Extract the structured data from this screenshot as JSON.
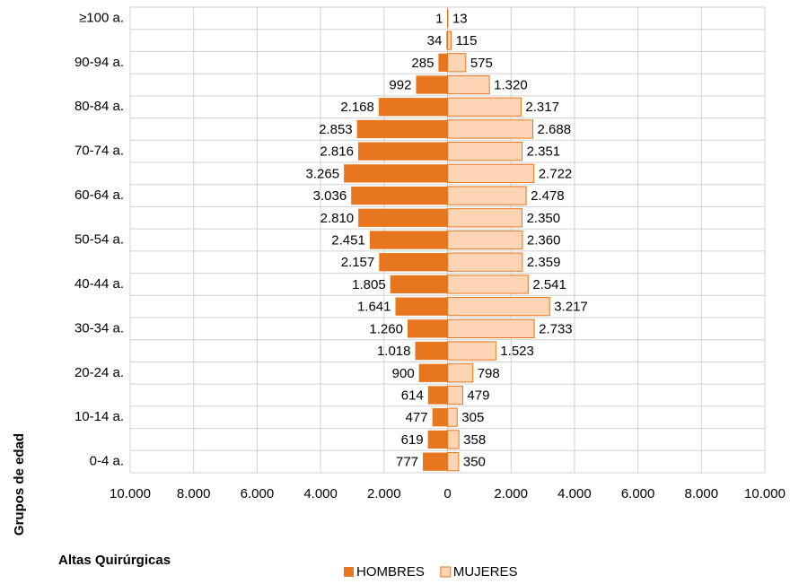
{
  "chart_data": {
    "type": "pyramid",
    "title": "Altas Quirúrgicas",
    "y_label": "Grupos de edad",
    "categories": [
      "≥100 a.",
      null,
      "90-94 a.",
      null,
      "80-84 a.",
      null,
      "70-74 a.",
      null,
      "60-64 a.",
      null,
      "50-54 a.",
      null,
      "40-44 a.",
      null,
      "30-34 a.",
      null,
      "20-24 a.",
      null,
      "10-14 a.",
      null,
      "0-4 a."
    ],
    "series": [
      {
        "name": "HOMBRES",
        "color": "#e8761f",
        "values": [
          1,
          34,
          285,
          992,
          2168,
          2853,
          2816,
          3265,
          3036,
          2810,
          2451,
          2157,
          1805,
          1641,
          1260,
          1018,
          900,
          614,
          477,
          619,
          777
        ],
        "value_labels": [
          "1",
          "34",
          "285",
          "992",
          "2.168",
          "2.853",
          "2.816",
          "3.265",
          "3.036",
          "2.810",
          "2.451",
          "2.157",
          "1.805",
          "1.641",
          "1.260",
          "1.018",
          "900",
          "614",
          "477",
          "619",
          "777"
        ]
      },
      {
        "name": "MUJERES",
        "color": "#fdd5b4",
        "values": [
          13,
          115,
          575,
          1320,
          2317,
          2688,
          2351,
          2722,
          2478,
          2350,
          2360,
          2359,
          2541,
          3217,
          2733,
          1523,
          798,
          479,
          305,
          358,
          350
        ],
        "value_labels": [
          "13",
          "115",
          "575",
          "1.320",
          "2.317",
          "2.688",
          "2.351",
          "2.722",
          "2.478",
          "2.350",
          "2.360",
          "2.359",
          "2.541",
          "3.217",
          "2.733",
          "1.523",
          "798",
          "479",
          "305",
          "358",
          "350"
        ]
      }
    ],
    "xlim": [
      -10000,
      10000
    ],
    "xticks": [
      {
        "value": -10000,
        "label": "10.000"
      },
      {
        "value": -8000,
        "label": "8.000"
      },
      {
        "value": -6000,
        "label": "6.000"
      },
      {
        "value": -4000,
        "label": "4.000"
      },
      {
        "value": -2000,
        "label": "2.000"
      },
      0,
      {
        "value": 2000,
        "label": "2.000"
      },
      {
        "value": 4000,
        "label": "4.000"
      },
      {
        "value": 6000,
        "label": "6.000"
      },
      {
        "value": 8000,
        "label": "8.000"
      },
      {
        "value": 10000,
        "label": "10.000"
      }
    ],
    "grid": true
  }
}
